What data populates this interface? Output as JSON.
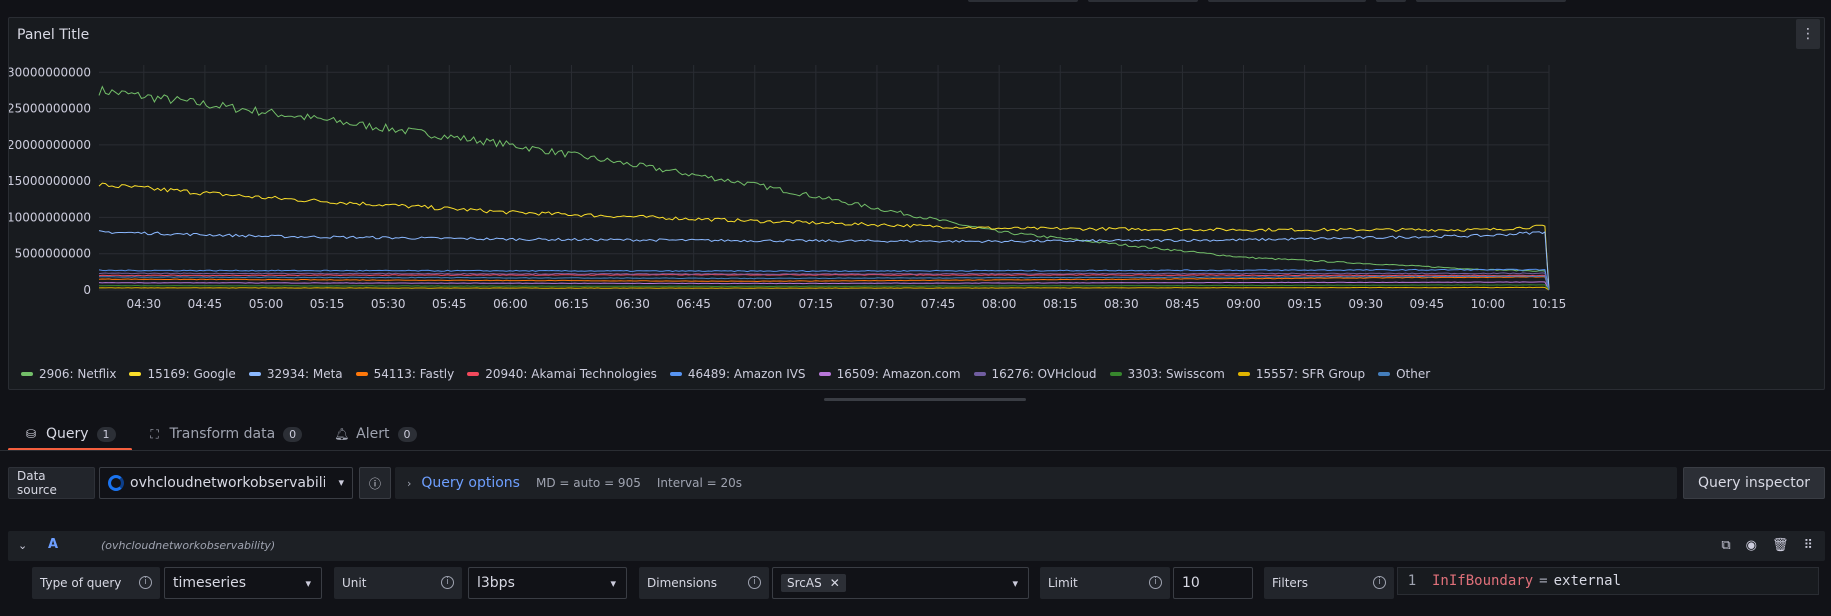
{
  "panel": {
    "title": "Panel Title"
  },
  "chart_data": {
    "type": "line",
    "y_ticks": [
      "30000000000",
      "25000000000",
      "20000000000",
      "15000000000",
      "10000000000",
      "5000000000",
      "0"
    ],
    "x_ticks": [
      "04:30",
      "04:45",
      "05:00",
      "05:15",
      "05:30",
      "05:45",
      "06:00",
      "06:15",
      "06:30",
      "06:45",
      "07:00",
      "07:15",
      "07:30",
      "07:45",
      "08:00",
      "08:15",
      "08:30",
      "08:45",
      "09:00",
      "09:15",
      "09:30",
      "09:45",
      "10:00",
      "10:15"
    ],
    "ylim": [
      0,
      31000000000
    ],
    "x_range": [
      "04:19",
      "10:15"
    ],
    "grid": true,
    "legend_position": "bottom",
    "series": [
      {
        "name": "2906: Netflix",
        "color": "#73bf69",
        "keyframes": [
          [
            "04:19",
            27500000000
          ],
          [
            "05:00",
            24500000000
          ],
          [
            "06:00",
            20000000000
          ],
          [
            "07:00",
            14500000000
          ],
          [
            "08:00",
            8000000000
          ],
          [
            "09:00",
            4500000000
          ],
          [
            "10:00",
            2800000000
          ],
          [
            "10:14",
            2600000000
          ],
          [
            "10:15",
            0
          ]
        ]
      },
      {
        "name": "15169: Google",
        "color": "#fade2a",
        "keyframes": [
          [
            "04:19",
            14500000000
          ],
          [
            "05:00",
            12700000000
          ],
          [
            "06:00",
            10700000000
          ],
          [
            "07:00",
            9500000000
          ],
          [
            "08:00",
            8500000000
          ],
          [
            "09:00",
            8300000000
          ],
          [
            "10:00",
            8300000000
          ],
          [
            "10:14",
            8800000000
          ],
          [
            "10:15",
            0
          ]
        ]
      },
      {
        "name": "32934: Meta",
        "color": "#8ab8ff",
        "keyframes": [
          [
            "04:19",
            8000000000
          ],
          [
            "05:00",
            7400000000
          ],
          [
            "06:00",
            7000000000
          ],
          [
            "07:00",
            6800000000
          ],
          [
            "08:00",
            6700000000
          ],
          [
            "09:00",
            6900000000
          ],
          [
            "10:00",
            7500000000
          ],
          [
            "10:14",
            8000000000
          ],
          [
            "10:15",
            0
          ]
        ]
      },
      {
        "name": "54113: Fastly",
        "color": "#ff780a",
        "keyframes": [
          [
            "04:19",
            1500000000
          ],
          [
            "07:00",
            1200000000
          ],
          [
            "10:14",
            1800000000
          ],
          [
            "10:15",
            0
          ]
        ]
      },
      {
        "name": "20940: Akamai Technologies",
        "color": "#f2495c",
        "keyframes": [
          [
            "04:19",
            2000000000
          ],
          [
            "07:00",
            2100000000
          ],
          [
            "10:14",
            2000000000
          ],
          [
            "10:15",
            0
          ]
        ]
      },
      {
        "name": "46489: Amazon IVS",
        "color": "#5794f2",
        "keyframes": [
          [
            "04:19",
            2700000000
          ],
          [
            "07:00",
            2600000000
          ],
          [
            "10:14",
            2800000000
          ],
          [
            "10:15",
            0
          ]
        ]
      },
      {
        "name": "16509: Amazon.com",
        "color": "#b877d9",
        "keyframes": [
          [
            "04:19",
            1000000000
          ],
          [
            "07:00",
            900000000
          ],
          [
            "10:14",
            1100000000
          ],
          [
            "10:15",
            0
          ]
        ]
      },
      {
        "name": "16276: OVHcloud",
        "color": "#705da0",
        "keyframes": [
          [
            "04:19",
            2300000000
          ],
          [
            "07:00",
            2200000000
          ],
          [
            "10:14",
            2300000000
          ],
          [
            "10:15",
            0
          ]
        ]
      },
      {
        "name": "3303: Swisscom",
        "color": "#37872d",
        "keyframes": [
          [
            "04:19",
            600000000
          ],
          [
            "07:00",
            500000000
          ],
          [
            "10:14",
            700000000
          ],
          [
            "10:15",
            0
          ]
        ]
      },
      {
        "name": "15557: SFR Group",
        "color": "#e0b400",
        "keyframes": [
          [
            "04:19",
            300000000
          ],
          [
            "07:00",
            250000000
          ],
          [
            "10:14",
            350000000
          ],
          [
            "10:15",
            0
          ]
        ]
      },
      {
        "name": "Other",
        "color": "#447ebc",
        "keyframes": [
          [
            "04:19",
            1800000000
          ],
          [
            "07:00",
            1600000000
          ],
          [
            "10:14",
            1900000000
          ],
          [
            "10:15",
            0
          ]
        ]
      }
    ]
  },
  "tabs": [
    {
      "label": "Query",
      "count": "1",
      "icon": "database-icon",
      "active": true
    },
    {
      "label": "Transform data",
      "count": "0",
      "icon": "transform-icon",
      "active": false
    },
    {
      "label": "Alert",
      "count": "0",
      "icon": "bell-icon",
      "active": false
    }
  ],
  "toolbar": {
    "datasource_label": "Data source",
    "datasource_value": "ovhcloudnetworkobservability",
    "query_options_label": "Query options",
    "md": "MD = auto = 905",
    "interval": "Interval = 20s",
    "query_inspector": "Query inspector"
  },
  "query": {
    "ref": "A",
    "datasource": "(ovhcloudnetworkobservability)",
    "type_label": "Type of query",
    "type_value": "timeseries",
    "unit_label": "Unit",
    "unit_value": "l3bps",
    "dimensions_label": "Dimensions",
    "dimension_chip": "SrcAS",
    "limit_label": "Limit",
    "limit_value": "10",
    "filters_label": "Filters",
    "filter_line": "1",
    "filter_key": "InIfBoundary",
    "filter_op": "=",
    "filter_value": "external"
  },
  "colors": {
    "accent": "#f55f3e",
    "link": "#6e9fff"
  }
}
